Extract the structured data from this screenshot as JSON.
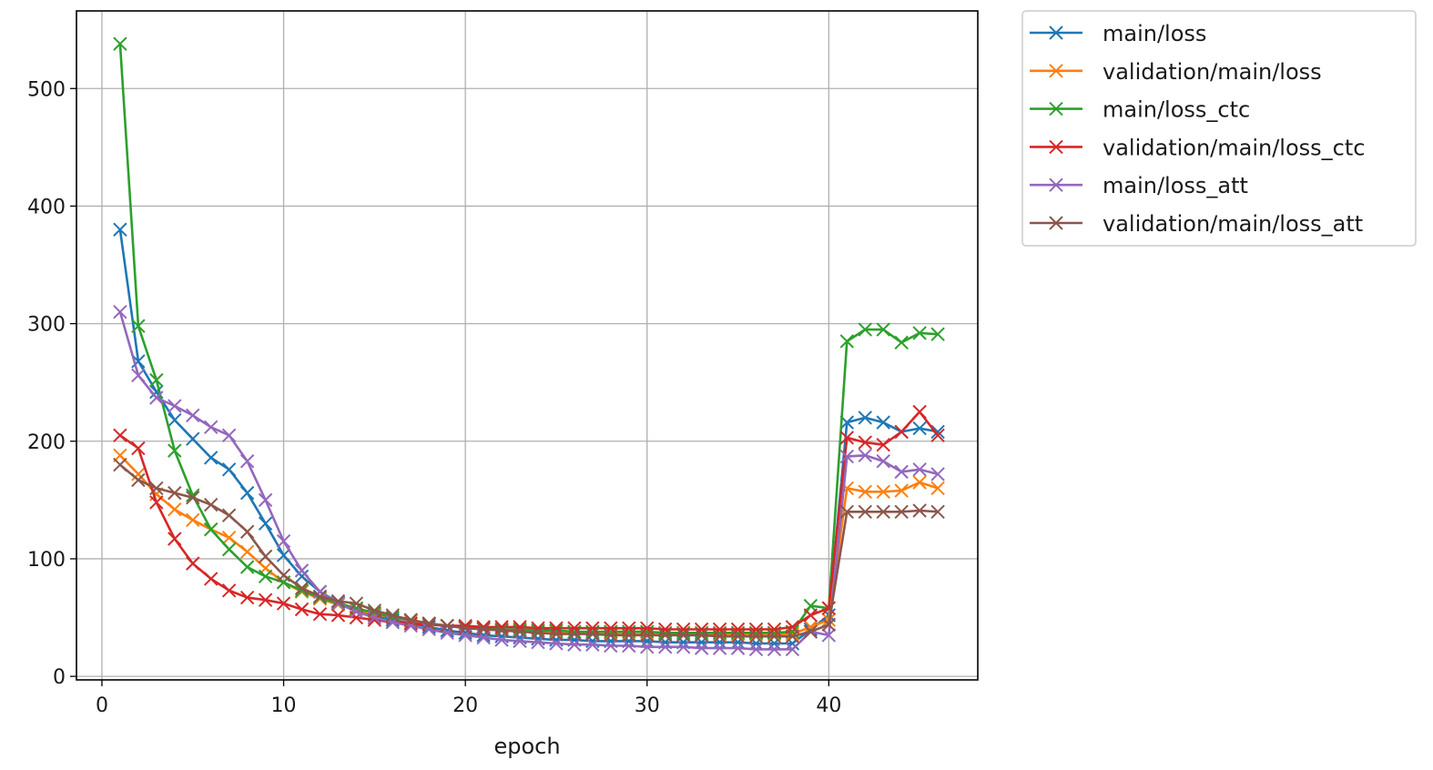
{
  "chart_data": {
    "type": "line",
    "title": "",
    "xlabel": "epoch",
    "ylabel": "",
    "xlim": [
      -1.4,
      48.2
    ],
    "ylim": [
      -3,
      566
    ],
    "xticks": [
      0,
      10,
      20,
      30,
      40
    ],
    "yticks": [
      0,
      100,
      200,
      300,
      400,
      500
    ],
    "grid": true,
    "legend_position": "outside-top-right",
    "marker": "x",
    "series": [
      {
        "name": "main/loss",
        "color": "#1f77b4",
        "x": [
          1,
          2,
          3,
          4,
          5,
          6,
          7,
          8,
          9,
          10,
          11,
          12,
          13,
          14,
          15,
          16,
          17,
          18,
          19,
          20,
          21,
          22,
          23,
          24,
          25,
          26,
          27,
          28,
          29,
          30,
          31,
          32,
          33,
          34,
          35,
          36,
          37,
          38,
          39,
          40,
          41,
          42,
          43,
          44,
          45,
          46
        ],
        "y": [
          380,
          268,
          242,
          218,
          202,
          186,
          176,
          156,
          130,
          103,
          85,
          72,
          63,
          57,
          52,
          48,
          45,
          42,
          39,
          37,
          35,
          34,
          33,
          32,
          31,
          31,
          30,
          30,
          30,
          30,
          29,
          29,
          29,
          29,
          29,
          28,
          28,
          28,
          40,
          52,
          216,
          220,
          216,
          208,
          211,
          208
        ]
      },
      {
        "name": "validation/main/loss",
        "color": "#ff7f0e",
        "x": [
          1,
          2,
          3,
          4,
          5,
          6,
          7,
          8,
          9,
          10,
          11,
          12,
          13,
          14,
          15,
          16,
          17,
          18,
          19,
          20,
          21,
          22,
          23,
          24,
          25,
          26,
          27,
          28,
          29,
          30,
          31,
          32,
          33,
          34,
          35,
          36,
          37,
          38,
          39,
          40,
          41,
          42,
          43,
          44,
          45,
          46
        ],
        "y": [
          188,
          172,
          155,
          142,
          133,
          125,
          118,
          106,
          92,
          80,
          72,
          66,
          61,
          57,
          53,
          50,
          47,
          45,
          43,
          42,
          41,
          40,
          39,
          38,
          38,
          37,
          37,
          37,
          36,
          36,
          36,
          36,
          36,
          36,
          36,
          36,
          36,
          36,
          42,
          48,
          160,
          157,
          157,
          158,
          165,
          160
        ]
      },
      {
        "name": "main/loss_ctc",
        "color": "#2ca02c",
        "x": [
          1,
          2,
          3,
          4,
          5,
          6,
          7,
          8,
          9,
          10,
          11,
          12,
          13,
          14,
          15,
          16,
          17,
          18,
          19,
          20,
          21,
          22,
          23,
          24,
          25,
          26,
          27,
          28,
          29,
          30,
          31,
          32,
          33,
          34,
          35,
          36,
          37,
          38,
          39,
          40,
          41,
          42,
          43,
          44,
          45,
          46
        ],
        "y": [
          538,
          298,
          252,
          192,
          154,
          125,
          108,
          93,
          85,
          80,
          73,
          67,
          62,
          58,
          54,
          50,
          48,
          45,
          43,
          42,
          41,
          40,
          40,
          39,
          39,
          38,
          38,
          38,
          38,
          38,
          37,
          37,
          37,
          37,
          37,
          37,
          37,
          38,
          60,
          58,
          285,
          295,
          295,
          284,
          292,
          291
        ]
      },
      {
        "name": "validation/main/loss_ctc",
        "color": "#d62728",
        "x": [
          1,
          2,
          3,
          4,
          5,
          6,
          7,
          8,
          9,
          10,
          11,
          12,
          13,
          14,
          15,
          16,
          17,
          18,
          19,
          20,
          21,
          22,
          23,
          24,
          25,
          26,
          27,
          28,
          29,
          30,
          31,
          32,
          33,
          34,
          35,
          36,
          37,
          38,
          39,
          40,
          41,
          42,
          43,
          44,
          45,
          46
        ],
        "y": [
          205,
          194,
          148,
          117,
          96,
          83,
          73,
          67,
          65,
          62,
          57,
          53,
          52,
          50,
          48,
          46,
          45,
          44,
          43,
          43,
          42,
          42,
          42,
          41,
          41,
          41,
          41,
          41,
          41,
          41,
          40,
          40,
          40,
          40,
          40,
          40,
          40,
          42,
          52,
          58,
          203,
          199,
          197,
          208,
          225,
          205
        ]
      },
      {
        "name": "main/loss_att",
        "color": "#9467bd",
        "x": [
          1,
          2,
          3,
          4,
          5,
          6,
          7,
          8,
          9,
          10,
          11,
          12,
          13,
          14,
          15,
          16,
          17,
          18,
          19,
          20,
          21,
          22,
          23,
          24,
          25,
          26,
          27,
          28,
          29,
          30,
          31,
          32,
          33,
          34,
          35,
          36,
          37,
          38,
          39,
          40,
          41,
          42,
          43,
          44,
          45,
          46
        ],
        "y": [
          310,
          256,
          237,
          230,
          222,
          212,
          205,
          183,
          150,
          115,
          90,
          72,
          62,
          55,
          50,
          46,
          43,
          40,
          37,
          35,
          33,
          31,
          30,
          29,
          28,
          27,
          27,
          26,
          26,
          25,
          25,
          25,
          24,
          24,
          24,
          23,
          23,
          23,
          38,
          35,
          187,
          188,
          183,
          174,
          176,
          172
        ]
      },
      {
        "name": "validation/main/loss_att",
        "color": "#8c564b",
        "x": [
          1,
          2,
          3,
          4,
          5,
          6,
          7,
          8,
          9,
          10,
          11,
          12,
          13,
          14,
          15,
          16,
          17,
          18,
          19,
          20,
          21,
          22,
          23,
          24,
          25,
          26,
          27,
          28,
          29,
          30,
          31,
          32,
          33,
          34,
          35,
          36,
          37,
          38,
          39,
          40,
          41,
          42,
          43,
          44,
          45,
          46
        ],
        "y": [
          180,
          167,
          160,
          156,
          152,
          146,
          137,
          123,
          102,
          86,
          75,
          68,
          64,
          62,
          56,
          52,
          48,
          45,
          43,
          41,
          40,
          39,
          38,
          37,
          36,
          36,
          36,
          35,
          35,
          35,
          35,
          35,
          35,
          34,
          34,
          34,
          34,
          34,
          38,
          44,
          140,
          140,
          140,
          140,
          141,
          140
        ]
      }
    ]
  }
}
